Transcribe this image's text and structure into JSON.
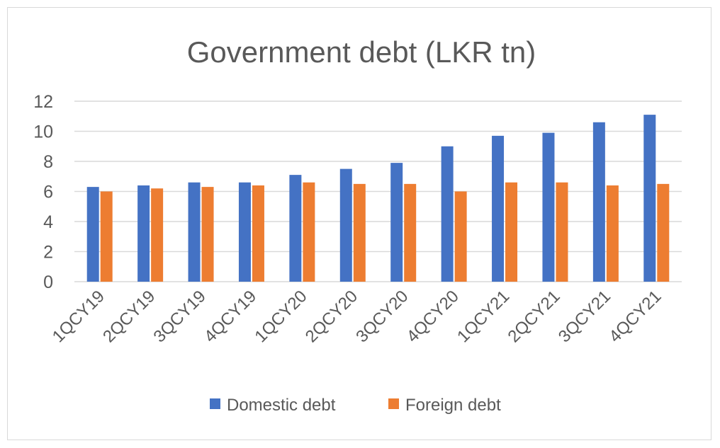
{
  "chart_data": {
    "type": "bar",
    "title": "Government debt (LKR tn)",
    "xlabel": "",
    "ylabel": "",
    "ylim": [
      0,
      12
    ],
    "yticks": [
      0,
      2,
      4,
      6,
      8,
      10,
      12
    ],
    "grid": true,
    "legend_position": "bottom",
    "categories": [
      "1QCY19",
      "2QCY19",
      "3QCY19",
      "4QCY19",
      "1QCY20",
      "2QCY20",
      "3QCY20",
      "4QCY20",
      "1QCY21",
      "2QCY21",
      "3QCY21",
      "4QCY21"
    ],
    "series": [
      {
        "name": "Domestic debt",
        "color": "#4472c4",
        "values": [
          6.3,
          6.4,
          6.6,
          6.6,
          7.1,
          7.5,
          7.9,
          9.0,
          9.7,
          9.9,
          10.6,
          11.1
        ]
      },
      {
        "name": "Foreign debt",
        "color": "#ed7d31",
        "values": [
          6.0,
          6.2,
          6.3,
          6.4,
          6.6,
          6.5,
          6.5,
          6.0,
          6.6,
          6.6,
          6.4,
          6.5
        ]
      }
    ]
  }
}
